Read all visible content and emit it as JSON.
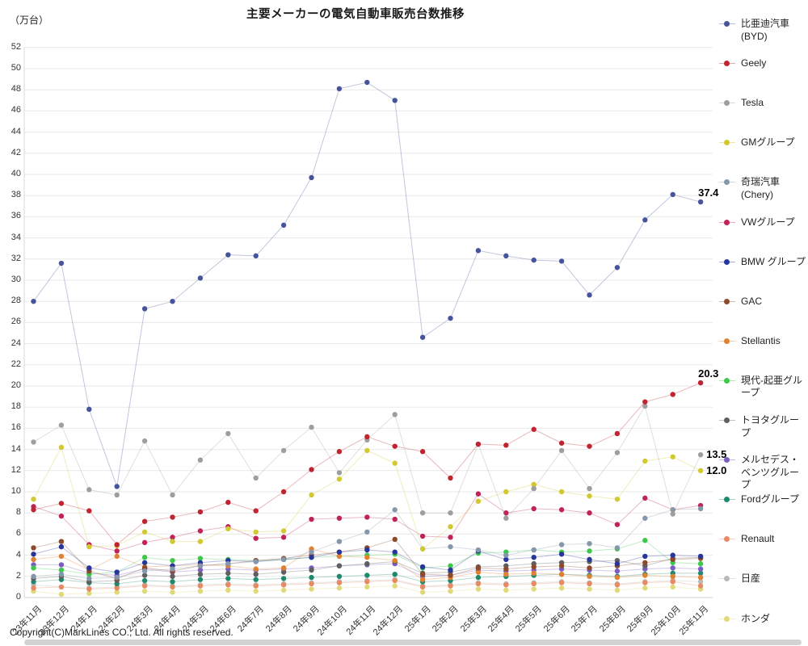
{
  "title": "主要メーカーの電気自動車販売台数推移",
  "y_axis": {
    "unit_label": "（万台）",
    "min": 0,
    "max": 52,
    "step": 2
  },
  "footer": {
    "copyright": "Copyright(C)MarkLines CO., Ltd. All rights reserved."
  },
  "annotations": [
    {
      "text": "37.4",
      "series_index": 0,
      "placement": "above"
    },
    {
      "text": "20.3",
      "series_index": 1,
      "placement": "above"
    },
    {
      "text": "13.5",
      "series_index": 2,
      "placement": "right"
    },
    {
      "text": "12.0",
      "series_index": 3,
      "placement": "right"
    }
  ],
  "chart_data": {
    "type": "line",
    "title": "主要メーカーの電気自動車販売台数推移",
    "ylabel": "（万台）",
    "ylim": [
      0,
      52
    ],
    "grid": true,
    "legend_position": "right",
    "categories": [
      "23年11月",
      "23年12月",
      "24年1月",
      "24年2月",
      "24年3月",
      "24年4月",
      "24年5月",
      "24年6月",
      "24年7月",
      "24年8月",
      "24年9月",
      "24年10月",
      "24年11月",
      "24年12月",
      "25年1月",
      "25年2月",
      "25年3月",
      "25年4月",
      "25年5月",
      "25年6月",
      "25年7月",
      "25年8月",
      "25年9月",
      "25年10月",
      "25年11月"
    ],
    "series": [
      {
        "name": "比亜迪汽車(BYD)",
        "legend_label": "比亜迪汽車\n(BYD)",
        "color": "#46549b",
        "values": [
          28.0,
          31.6,
          17.8,
          10.5,
          27.3,
          28.0,
          30.2,
          32.4,
          32.3,
          35.2,
          39.7,
          48.1,
          48.7,
          47.0,
          24.6,
          26.4,
          32.8,
          32.3,
          31.9,
          31.8,
          28.6,
          31.2,
          35.7,
          38.1,
          37.4
        ]
      },
      {
        "name": "Geely",
        "legend_label": "Geely",
        "color": "#bf2430",
        "values": [
          8.3,
          8.9,
          8.2,
          5.0,
          7.2,
          7.6,
          8.1,
          9.0,
          8.2,
          10.0,
          12.1,
          13.8,
          15.2,
          14.3,
          13.8,
          11.3,
          14.5,
          14.4,
          15.9,
          14.6,
          14.3,
          15.5,
          18.5,
          19.2,
          20.3
        ]
      },
      {
        "name": "Tesla",
        "legend_label": "Tesla",
        "color": "#9e9e9e",
        "values": [
          14.7,
          16.3,
          10.2,
          9.7,
          14.8,
          9.7,
          13.0,
          15.5,
          11.3,
          13.9,
          16.1,
          11.8,
          14.9,
          17.3,
          8.0,
          8.0,
          14.5,
          7.5,
          10.3,
          13.9,
          10.3,
          13.7,
          18.1,
          7.9,
          13.5
        ]
      },
      {
        "name": "GMグループ",
        "legend_label": "GMグループ",
        "color": "#d2c930",
        "values": [
          9.3,
          14.2,
          4.8,
          4.9,
          6.2,
          5.3,
          5.3,
          6.5,
          6.2,
          6.3,
          9.7,
          11.2,
          13.9,
          12.7,
          4.6,
          6.7,
          9.1,
          10.0,
          10.7,
          10.0,
          9.6,
          9.3,
          12.9,
          13.3,
          12.0
        ]
      },
      {
        "name": "奇瑞汽車(Chery)",
        "legend_label": "奇瑞汽車\n(Chery)",
        "color": "#8497ab",
        "values": [
          2.0,
          2.2,
          1.8,
          1.9,
          2.5,
          2.7,
          3.0,
          3.2,
          3.4,
          3.6,
          4.3,
          5.3,
          6.2,
          8.3,
          4.6,
          4.8,
          4.5,
          4.0,
          4.5,
          5.0,
          5.1,
          4.7,
          7.5,
          8.3,
          8.4
        ]
      },
      {
        "name": "VWグループ",
        "legend_label": "VWグループ",
        "color": "#c02358",
        "values": [
          8.6,
          7.7,
          5.0,
          4.4,
          5.2,
          5.7,
          6.3,
          6.7,
          5.6,
          5.7,
          7.4,
          7.5,
          7.6,
          7.4,
          5.8,
          5.7,
          9.8,
          8.0,
          8.4,
          8.3,
          8.0,
          6.9,
          9.4,
          8.3,
          8.7
        ]
      },
      {
        "name": "BMW グループ",
        "legend_label": "BMW グループ",
        "color": "#28359b",
        "values": [
          4.1,
          4.8,
          2.8,
          2.4,
          3.3,
          3.0,
          3.3,
          3.5,
          3.4,
          3.6,
          3.8,
          4.3,
          4.5,
          4.3,
          2.9,
          2.6,
          4.4,
          3.6,
          3.8,
          4.1,
          3.6,
          3.2,
          3.9,
          4.0,
          3.9
        ]
      },
      {
        "name": "GAC",
        "legend_label": "GAC",
        "color": "#8c4a2b",
        "values": [
          4.7,
          5.3,
          2.5,
          1.8,
          2.8,
          2.5,
          3.0,
          3.2,
          3.5,
          3.7,
          4.0,
          4.3,
          4.7,
          5.5,
          2.2,
          2.1,
          2.8,
          2.7,
          2.9,
          3.0,
          2.8,
          3.0,
          3.3,
          3.6,
          3.7
        ]
      },
      {
        "name": "Stellantis",
        "legend_label": "Stellantis",
        "color": "#e0812f",
        "values": [
          3.6,
          3.9,
          2.6,
          3.9,
          2.9,
          3.0,
          3.1,
          3.0,
          2.7,
          2.8,
          4.6,
          3.9,
          3.8,
          3.5,
          1.7,
          1.9,
          2.4,
          2.2,
          2.3,
          2.2,
          2.0,
          1.9,
          2.1,
          2.0,
          1.9
        ]
      },
      {
        "name": "現代-起亜グループ",
        "legend_label": "現代-起亜グループ",
        "color": "#3bc84b",
        "values": [
          2.8,
          2.6,
          2.2,
          2.4,
          3.8,
          3.5,
          3.7,
          3.6,
          3.5,
          3.6,
          3.8,
          3.9,
          4.0,
          4.1,
          2.8,
          3.0,
          4.2,
          4.3,
          4.5,
          4.3,
          4.4,
          4.6,
          5.4,
          3.3,
          3.2
        ]
      },
      {
        "name": "トヨタグループ",
        "legend_label": "トヨタグループ",
        "color": "#5f5f5f",
        "values": [
          1.8,
          2.0,
          1.5,
          1.6,
          2.1,
          2.0,
          2.2,
          2.3,
          2.2,
          2.4,
          2.6,
          3.0,
          3.2,
          3.4,
          2.3,
          2.4,
          2.9,
          3.0,
          3.2,
          3.3,
          3.4,
          3.5,
          3.0,
          3.7,
          3.8
        ]
      },
      {
        "name": "メルセデス・ベンツグループ",
        "legend_label": "メルセデス・ベンツグループ",
        "color": "#7a5cc2",
        "values": [
          3.1,
          3.1,
          2.3,
          2.1,
          2.7,
          2.4,
          2.6,
          2.7,
          2.6,
          2.7,
          2.8,
          3.0,
          3.1,
          3.2,
          2.0,
          2.1,
          2.6,
          2.5,
          2.6,
          2.7,
          2.6,
          2.5,
          2.7,
          2.8,
          2.7
        ]
      },
      {
        "name": "Fordグループ",
        "legend_label": "Fordグループ",
        "color": "#1d8a6e",
        "values": [
          1.5,
          1.7,
          1.4,
          1.3,
          1.6,
          1.5,
          1.7,
          1.8,
          1.7,
          1.8,
          1.9,
          2.0,
          2.1,
          2.2,
          1.5,
          1.6,
          1.9,
          2.0,
          2.1,
          2.2,
          2.1,
          2.0,
          2.2,
          2.3,
          2.3
        ]
      },
      {
        "name": "Renault",
        "legend_label": "Renault",
        "color": "#e78a63",
        "values": [
          0.9,
          1.0,
          0.8,
          0.9,
          1.1,
          1.0,
          1.1,
          1.2,
          1.1,
          1.2,
          1.3,
          1.4,
          1.5,
          1.6,
          1.0,
          1.1,
          1.3,
          1.2,
          1.3,
          1.4,
          1.3,
          1.2,
          1.4,
          1.5,
          1.1
        ]
      },
      {
        "name": "日産",
        "legend_label": "日産",
        "color": "#b9b9b9",
        "values": [
          1.2,
          1.0,
          0.9,
          1.0,
          1.2,
          1.1,
          1.2,
          1.3,
          1.2,
          1.3,
          1.4,
          1.5,
          1.6,
          1.7,
          1.1,
          1.2,
          1.4,
          1.3,
          1.4,
          1.5,
          1.4,
          1.3,
          1.5,
          1.6,
          1.5
        ]
      },
      {
        "name": "ホンダ",
        "legend_label": "ホンダ",
        "color": "#e0d97a",
        "values": [
          0.6,
          0.3,
          0.4,
          0.5,
          0.6,
          0.5,
          0.6,
          0.7,
          0.6,
          0.7,
          0.8,
          0.9,
          1.0,
          1.1,
          0.5,
          0.6,
          0.8,
          0.7,
          0.8,
          0.9,
          0.8,
          0.7,
          0.9,
          1.0,
          0.8
        ]
      }
    ]
  }
}
